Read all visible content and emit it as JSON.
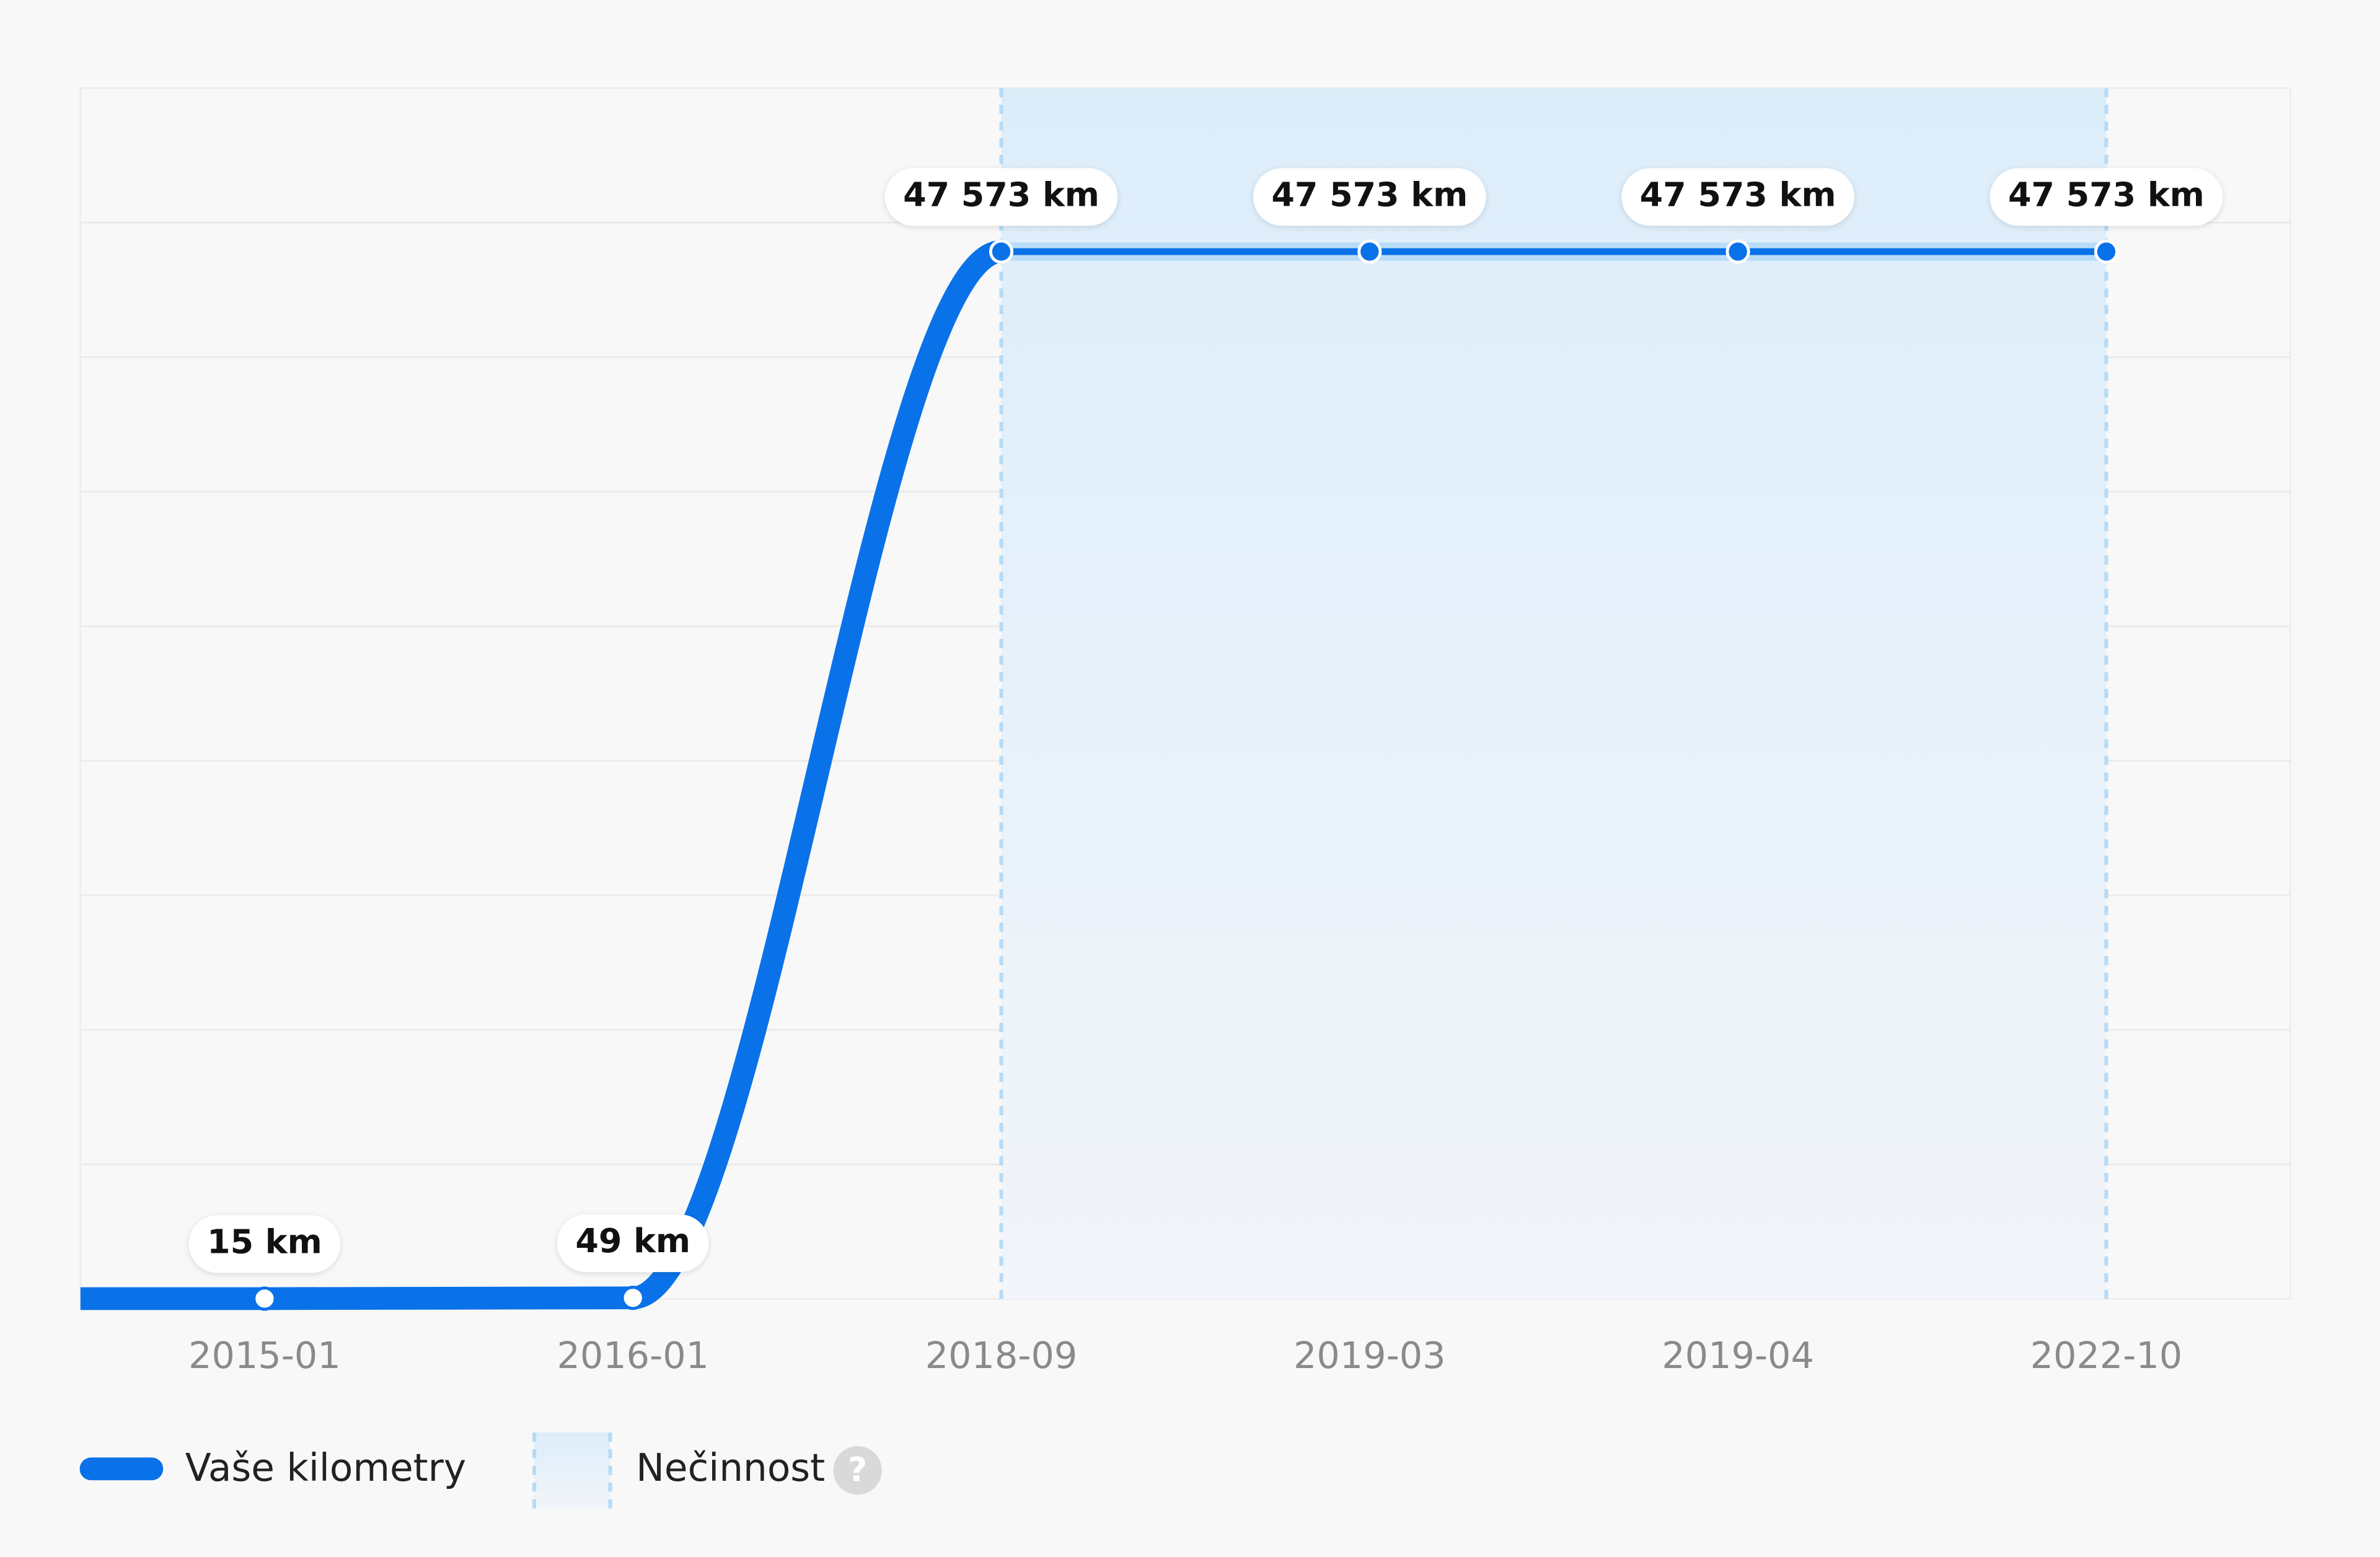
{
  "chart_data": {
    "type": "line",
    "categories": [
      "2015-01",
      "2016-01",
      "2018-09",
      "2019-03",
      "2019-04",
      "2022-10"
    ],
    "series": [
      {
        "name": "Vaše kilometry",
        "color": "#0a72e8",
        "values": [
          15,
          49,
          47573,
          47573,
          47573,
          47573
        ],
        "value_labels": [
          "15 km",
          "49 km",
          "47 573 km",
          "47 573 km",
          "47 573 km",
          "47 573 km"
        ]
      }
    ],
    "ylim": [
      0,
      55000
    ],
    "grid": true,
    "inactivity": {
      "label": "Nečinnost",
      "from": "2018-09",
      "to": "2022-10",
      "help": "?"
    },
    "legend": "bottom-left"
  }
}
